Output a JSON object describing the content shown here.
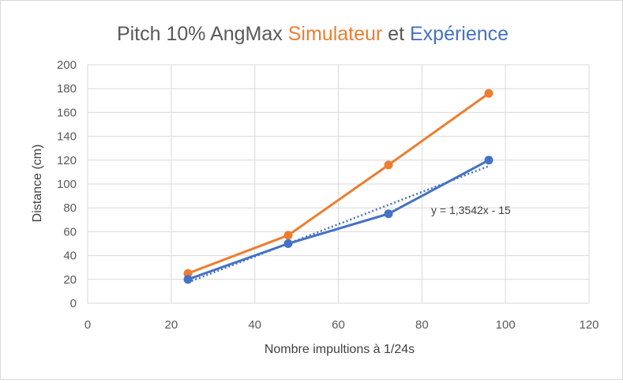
{
  "chart_data": {
    "type": "line",
    "title": {
      "parts": [
        {
          "text": "Pitch 10% AngMax ",
          "color": "#595959"
        },
        {
          "text": "Simulateur",
          "color": "#ED7D31"
        },
        {
          "text": " et ",
          "color": "#595959"
        },
        {
          "text": "Expérience",
          "color": "#4472C4"
        }
      ]
    },
    "xlabel": "Nombre impultions  à 1/24s",
    "ylabel": "Distance (cm)",
    "xlim": [
      0,
      120
    ],
    "ylim": [
      0,
      200
    ],
    "x_ticks": [
      0,
      20,
      40,
      60,
      80,
      100,
      120
    ],
    "y_ticks": [
      0,
      20,
      40,
      60,
      80,
      100,
      120,
      140,
      160,
      180,
      200
    ],
    "grid": true,
    "legend": "none",
    "series": [
      {
        "color": "#ED7D31",
        "x": [
          24,
          48,
          72,
          96
        ],
        "y": [
          25,
          57,
          116,
          176
        ]
      },
      {
        "color": "#4472C4",
        "x": [
          24,
          48,
          72,
          96
        ],
        "y": [
          20,
          50,
          75,
          120
        ]
      }
    ],
    "trendline": {
      "color": "#4472C4",
      "style": "dotted",
      "slope": 1.3542,
      "intercept": -15,
      "x_range": [
        24,
        96
      ],
      "equation_label": "y = 1,3542x - 15"
    }
  }
}
